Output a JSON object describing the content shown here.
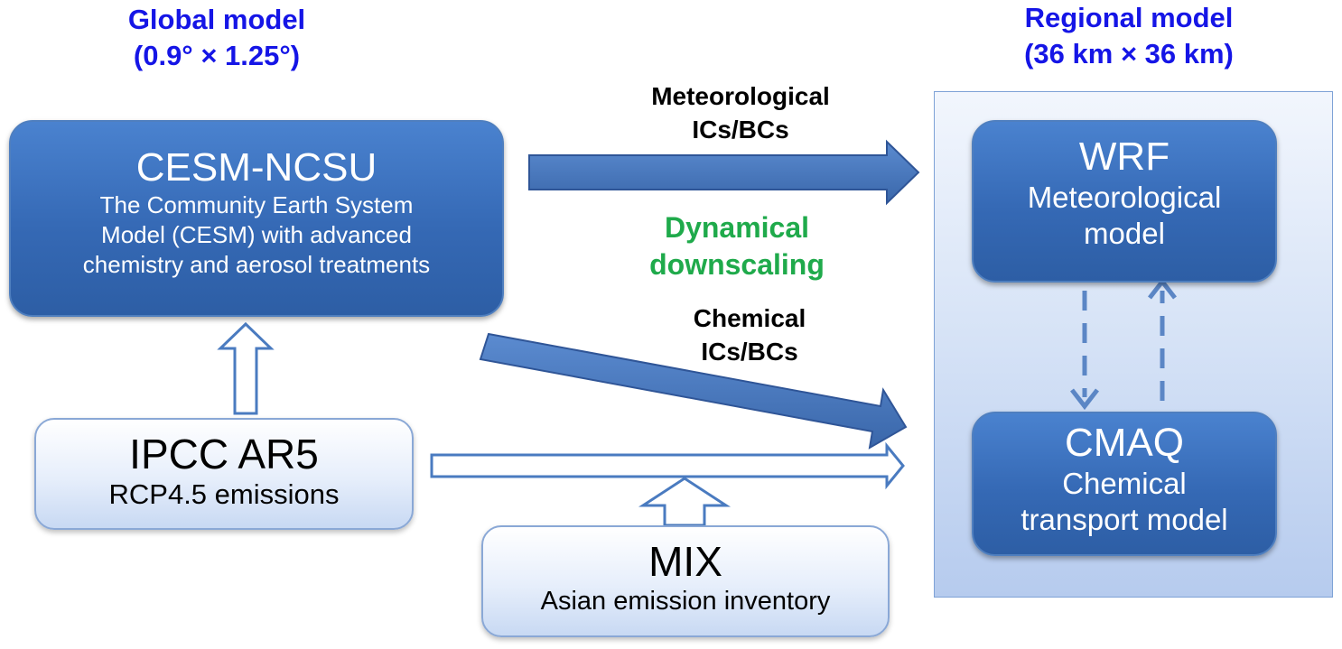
{
  "global_header": {
    "line1": "Global model",
    "line2": "(0.9°  × 1.25°)"
  },
  "regional_header": {
    "line1": "Regional model",
    "line2": "(36 km  × 36 km)"
  },
  "cesm": {
    "title": "CESM-NCSU",
    "desc1": "The Community Earth System",
    "desc2": "Model (CESM) with advanced",
    "desc3": "chemistry and aerosol treatments"
  },
  "ipcc": {
    "title": "IPCC AR5",
    "subtitle": "RCP4.5 emissions"
  },
  "mix": {
    "title": "MIX",
    "subtitle": "Asian emission inventory"
  },
  "wrf": {
    "title": "WRF",
    "line1": "Meteorological",
    "line2": "model"
  },
  "cmaq": {
    "title": "CMAQ",
    "line1": "Chemical",
    "line2": "transport model"
  },
  "labels": {
    "met_line1": "Meteorological",
    "met_line2": "ICs/BCs",
    "dyn_line1": "Dynamical",
    "dyn_line2": "downscaling",
    "chem_line1": "Chemical",
    "chem_line2": "ICs/BCs"
  },
  "colors": {
    "header_blue": "#1515e6",
    "green": "#1faa4b",
    "arrow_fill": "#4a7bc0",
    "arrow_stroke": "#2f5597"
  }
}
